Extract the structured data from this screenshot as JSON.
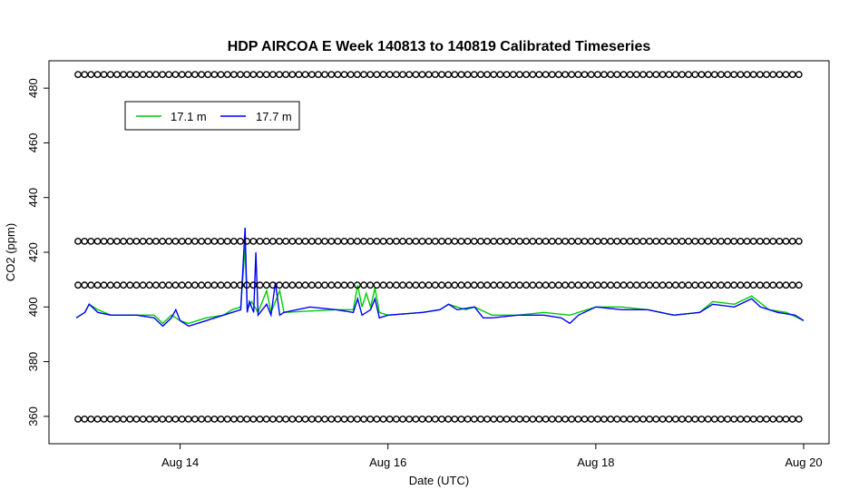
{
  "chart_data": {
    "type": "line",
    "title": "HDP AIRCOA E  Week 140813 to 140819  Calibrated Timeseries",
    "xlabel": "Date (UTC)",
    "ylabel": "CO2 (ppm)",
    "xlim": [
      "2014-08-13 00:00",
      "2014-08-20 00:00"
    ],
    "ylim": [
      350,
      490
    ],
    "x_ticks": [
      "Aug 14",
      "Aug 16",
      "Aug 18",
      "Aug 20"
    ],
    "x_tick_dates": [
      "2014-08-14",
      "2014-08-16",
      "2014-08-18",
      "2014-08-20"
    ],
    "y_ticks": [
      360,
      380,
      400,
      420,
      440,
      460,
      480
    ],
    "grid": false,
    "legend_position": "top-left",
    "series": [
      {
        "name": "17.1 m",
        "color": "#00cc00",
        "points": [
          [
            "2014-08-13 00:00",
            396
          ],
          [
            "2014-08-13 02:00",
            398
          ],
          [
            "2014-08-13 03:00",
            401
          ],
          [
            "2014-08-13 05:00",
            399
          ],
          [
            "2014-08-13 08:00",
            397
          ],
          [
            "2014-08-13 14:00",
            397
          ],
          [
            "2014-08-13 18:00",
            397
          ],
          [
            "2014-08-13 20:00",
            394
          ],
          [
            "2014-08-13 22:00",
            397
          ],
          [
            "2014-08-14 00:00",
            395
          ],
          [
            "2014-08-14 02:00",
            394
          ],
          [
            "2014-08-14 06:00",
            396
          ],
          [
            "2014-08-14 10:00",
            397
          ],
          [
            "2014-08-14 12:00",
            399
          ],
          [
            "2014-08-14 14:00",
            400
          ],
          [
            "2014-08-14 15:00",
            422
          ],
          [
            "2014-08-14 15:30",
            399
          ],
          [
            "2014-08-14 16:30",
            402
          ],
          [
            "2014-08-14 18:00",
            398
          ],
          [
            "2014-08-14 20:00",
            406
          ],
          [
            "2014-08-14 21:00",
            398
          ],
          [
            "2014-08-14 23:00",
            406
          ],
          [
            "2014-08-15 00:00",
            398
          ],
          [
            "2014-08-15 12:00",
            399
          ],
          [
            "2014-08-15 16:00",
            399
          ],
          [
            "2014-08-15 17:00",
            408
          ],
          [
            "2014-08-15 18:00",
            400
          ],
          [
            "2014-08-15 19:00",
            405
          ],
          [
            "2014-08-15 20:00",
            400
          ],
          [
            "2014-08-15 21:00",
            407
          ],
          [
            "2014-08-15 22:00",
            398
          ],
          [
            "2014-08-16 00:00",
            397
          ],
          [
            "2014-08-16 08:00",
            398
          ],
          [
            "2014-08-16 12:00",
            399
          ],
          [
            "2014-08-16 14:00",
            401
          ],
          [
            "2014-08-16 18:00",
            399
          ],
          [
            "2014-08-16 20:00",
            400
          ],
          [
            "2014-08-17 00:00",
            397
          ],
          [
            "2014-08-17 06:00",
            397
          ],
          [
            "2014-08-17 12:00",
            398
          ],
          [
            "2014-08-17 18:00",
            397
          ],
          [
            "2014-08-18 00:00",
            400
          ],
          [
            "2014-08-18 06:00",
            400
          ],
          [
            "2014-08-18 12:00",
            399
          ],
          [
            "2014-08-18 18:00",
            397
          ],
          [
            "2014-08-19 00:00",
            398
          ],
          [
            "2014-08-19 03:00",
            402
          ],
          [
            "2014-08-19 08:00",
            401
          ],
          [
            "2014-08-19 12:00",
            404
          ],
          [
            "2014-08-19 16:00",
            399
          ],
          [
            "2014-08-19 20:00",
            398
          ],
          [
            "2014-08-20 00:00",
            395
          ]
        ]
      },
      {
        "name": "17.7 m",
        "color": "#0000ff",
        "points": [
          [
            "2014-08-13 00:00",
            396
          ],
          [
            "2014-08-13 02:00",
            398
          ],
          [
            "2014-08-13 03:00",
            401
          ],
          [
            "2014-08-13 05:00",
            398
          ],
          [
            "2014-08-13 08:00",
            397
          ],
          [
            "2014-08-13 14:00",
            397
          ],
          [
            "2014-08-13 18:00",
            396
          ],
          [
            "2014-08-13 20:00",
            393
          ],
          [
            "2014-08-13 22:00",
            396
          ],
          [
            "2014-08-13 23:00",
            399
          ],
          [
            "2014-08-14 00:00",
            395
          ],
          [
            "2014-08-14 02:00",
            393
          ],
          [
            "2014-08-14 06:00",
            395
          ],
          [
            "2014-08-14 10:00",
            397
          ],
          [
            "2014-08-14 12:00",
            398
          ],
          [
            "2014-08-14 14:00",
            399
          ],
          [
            "2014-08-14 15:00",
            429
          ],
          [
            "2014-08-14 15:30",
            398
          ],
          [
            "2014-08-14 16:00",
            402
          ],
          [
            "2014-08-14 17:00",
            398
          ],
          [
            "2014-08-14 17:30",
            420
          ],
          [
            "2014-08-14 18:00",
            397
          ],
          [
            "2014-08-14 20:00",
            401
          ],
          [
            "2014-08-14 21:00",
            397
          ],
          [
            "2014-08-14 22:00",
            409
          ],
          [
            "2014-08-14 23:00",
            397
          ],
          [
            "2014-08-15 00:00",
            398
          ],
          [
            "2014-08-15 06:00",
            400
          ],
          [
            "2014-08-15 12:00",
            399
          ],
          [
            "2014-08-15 16:00",
            398
          ],
          [
            "2014-08-15 17:00",
            403
          ],
          [
            "2014-08-15 18:00",
            397
          ],
          [
            "2014-08-15 20:00",
            399
          ],
          [
            "2014-08-15 21:00",
            403
          ],
          [
            "2014-08-15 22:00",
            396
          ],
          [
            "2014-08-16 00:00",
            397
          ],
          [
            "2014-08-16 08:00",
            398
          ],
          [
            "2014-08-16 12:00",
            399
          ],
          [
            "2014-08-16 14:00",
            401
          ],
          [
            "2014-08-16 16:00",
            399
          ],
          [
            "2014-08-16 20:00",
            400
          ],
          [
            "2014-08-16 22:00",
            396
          ],
          [
            "2014-08-17 00:00",
            396
          ],
          [
            "2014-08-17 06:00",
            397
          ],
          [
            "2014-08-17 12:00",
            397
          ],
          [
            "2014-08-17 16:00",
            396
          ],
          [
            "2014-08-17 18:00",
            394
          ],
          [
            "2014-08-17 20:00",
            397
          ],
          [
            "2014-08-18 00:00",
            400
          ],
          [
            "2014-08-18 06:00",
            399
          ],
          [
            "2014-08-18 12:00",
            399
          ],
          [
            "2014-08-18 18:00",
            397
          ],
          [
            "2014-08-19 00:00",
            398
          ],
          [
            "2014-08-19 03:00",
            401
          ],
          [
            "2014-08-19 08:00",
            400
          ],
          [
            "2014-08-19 12:00",
            403
          ],
          [
            "2014-08-19 14:00",
            400
          ],
          [
            "2014-08-19 18:00",
            398
          ],
          [
            "2014-08-19 22:00",
            397
          ],
          [
            "2014-08-20 00:00",
            395
          ]
        ]
      },
      {
        "name": "",
        "marker": "circle",
        "color": "#000000",
        "levels": [
          485,
          424,
          408,
          359
        ]
      }
    ]
  }
}
